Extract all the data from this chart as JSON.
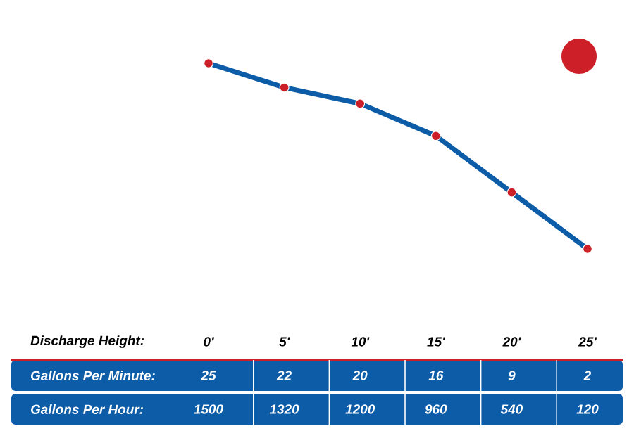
{
  "chart_data": {
    "type": "line",
    "xlabel": "Discharge Height:",
    "categories": [
      "0'",
      "5'",
      "10'",
      "15'",
      "20'",
      "25'"
    ],
    "series": [
      {
        "name": "Gallons Per Minute:",
        "color": "#0d5ca8",
        "values": [
          25,
          22,
          20,
          16,
          9,
          2
        ]
      }
    ],
    "marker": "circle",
    "data_labels": true,
    "annotations": [
      "Gallons Per Hour:",
      "1500",
      "1320",
      "1200",
      "960",
      "540",
      "120"
    ]
  }
}
